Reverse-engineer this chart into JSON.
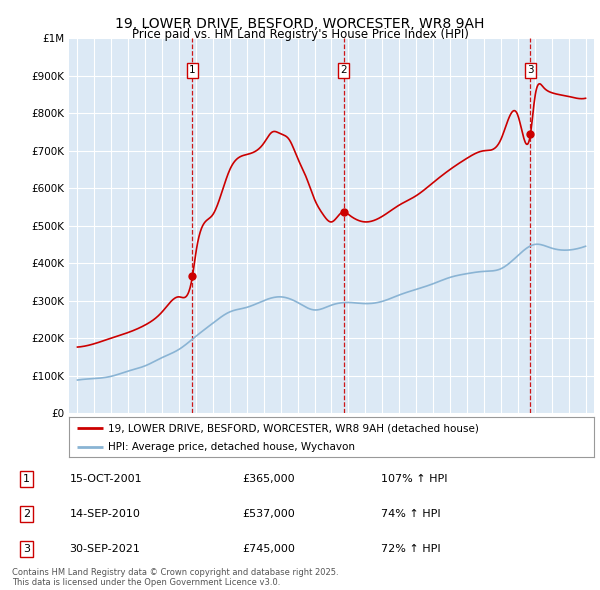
{
  "title_line1": "19, LOWER DRIVE, BESFORD, WORCESTER, WR8 9AH",
  "title_line2": "Price paid vs. HM Land Registry's House Price Index (HPI)",
  "chart_bg_color": "#dce9f5",
  "grid_color": "#ffffff",
  "red_color": "#cc0000",
  "blue_color": "#8ab4d4",
  "dashed_line_color": "#cc0000",
  "sales": [
    {
      "date": 2001.79,
      "price": 365000,
      "label": "1"
    },
    {
      "date": 2010.71,
      "price": 537000,
      "label": "2"
    },
    {
      "date": 2021.75,
      "price": 745000,
      "label": "3"
    }
  ],
  "sale_table": [
    {
      "num": "1",
      "date": "15-OCT-2001",
      "price": "£365,000",
      "pct": "107% ↑ HPI"
    },
    {
      "num": "2",
      "date": "14-SEP-2010",
      "price": "£537,000",
      "pct": "74% ↑ HPI"
    },
    {
      "num": "3",
      "date": "30-SEP-2021",
      "price": "£745,000",
      "pct": "72% ↑ HPI"
    }
  ],
  "legend_line1": "19, LOWER DRIVE, BESFORD, WORCESTER, WR8 9AH (detached house)",
  "legend_line2": "HPI: Average price, detached house, Wychavon",
  "footer": "Contains HM Land Registry data © Crown copyright and database right 2025.\nThis data is licensed under the Open Government Licence v3.0.",
  "ylim": [
    0,
    1000000
  ],
  "yticks": [
    0,
    100000,
    200000,
    300000,
    400000,
    500000,
    600000,
    700000,
    800000,
    900000,
    1000000
  ],
  "ytick_labels": [
    "£0",
    "£100K",
    "£200K",
    "£300K",
    "£400K",
    "£500K",
    "£600K",
    "£700K",
    "£800K",
    "£900K",
    "£1M"
  ],
  "xlim": [
    1994.5,
    2025.5
  ],
  "hpi_data_x": [
    1995,
    1996,
    1997,
    1998,
    1999,
    2000,
    2001,
    2002,
    2003,
    2004,
    2005,
    2006,
    2007,
    2008,
    2009,
    2010,
    2011,
    2012,
    2013,
    2014,
    2015,
    2016,
    2017,
    2018,
    2019,
    2020,
    2021,
    2022,
    2023,
    2024,
    2025
  ],
  "hpi_data_y": [
    88000,
    92000,
    98000,
    112000,
    126000,
    148000,
    170000,
    205000,
    240000,
    270000,
    282000,
    300000,
    310000,
    295000,
    275000,
    288000,
    295000,
    292000,
    298000,
    315000,
    330000,
    345000,
    362000,
    372000,
    378000,
    385000,
    420000,
    450000,
    440000,
    435000,
    445000
  ],
  "prop_data_x": [
    1995,
    1996,
    1997,
    1998,
    1999,
    2000,
    2001,
    2001.79,
    2002,
    2003,
    2004,
    2005,
    2006,
    2006.5,
    2007,
    2007.5,
    2008,
    2008.5,
    2009,
    2009.5,
    2010,
    2010.71,
    2011,
    2012,
    2013,
    2014,
    2015,
    2016,
    2017,
    2018,
    2019,
    2020,
    2021,
    2021.75,
    2022,
    2022.5,
    2023,
    2024,
    2024.5,
    2025
  ],
  "prop_data_y": [
    176000,
    185000,
    200000,
    215000,
    235000,
    270000,
    310000,
    365000,
    430000,
    530000,
    650000,
    690000,
    720000,
    750000,
    745000,
    730000,
    680000,
    630000,
    570000,
    530000,
    510000,
    537000,
    530000,
    510000,
    525000,
    555000,
    580000,
    615000,
    650000,
    680000,
    700000,
    730000,
    795000,
    745000,
    840000,
    870000,
    855000,
    845000,
    840000,
    840000
  ]
}
